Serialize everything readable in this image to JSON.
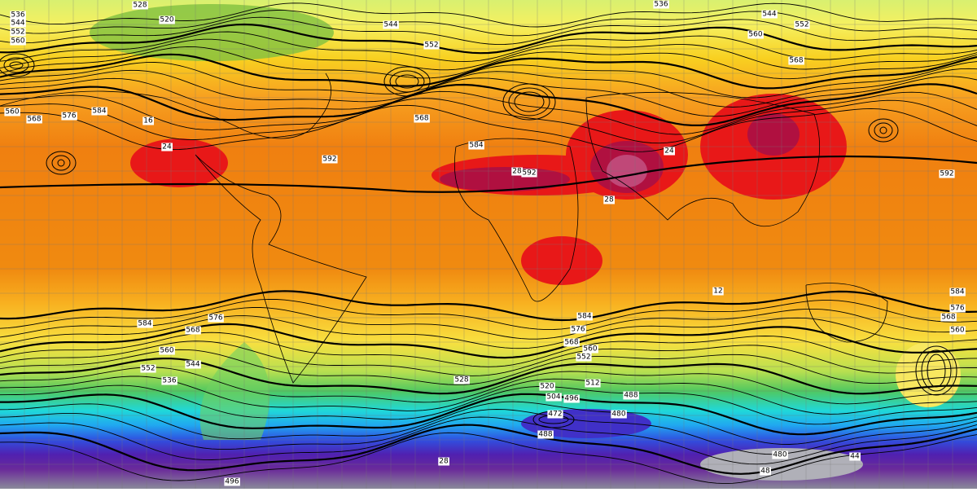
{
  "map": {
    "height_labels": [
      "536",
      "544",
      "552",
      "560",
      "528",
      "520",
      "544",
      "552",
      "536",
      "544",
      "552",
      "560",
      "568",
      "560",
      "568",
      "576",
      "584",
      "568",
      "592",
      "592",
      "592",
      "584",
      "584",
      "576",
      "568",
      "560",
      "576",
      "584",
      "568",
      "560",
      "552",
      "544",
      "536",
      "528",
      "520",
      "512",
      "504",
      "496",
      "488",
      "480",
      "472",
      "488",
      "584",
      "576",
      "568",
      "560",
      "552",
      "496",
      "480"
    ],
    "temperature_labels": [
      "24",
      "28",
      "16",
      "12",
      "28",
      "24",
      "48",
      "44",
      "28"
    ]
  }
}
